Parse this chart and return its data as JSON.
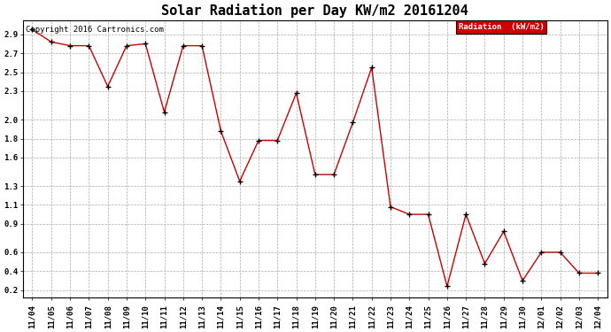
{
  "title": "Solar Radiation per Day KW/m2 20161204",
  "copyright_text": "Copyright 2016 Cartronics.com",
  "legend_label": "Radiation  (kW/m2)",
  "x_labels": [
    "11/04",
    "11/05",
    "11/06",
    "11/07",
    "11/08",
    "11/09",
    "11/10",
    "11/11",
    "11/12",
    "11/13",
    "11/14",
    "11/15",
    "11/16",
    "11/17",
    "11/18",
    "11/19",
    "11/20",
    "11/21",
    "11/22",
    "11/23",
    "11/24",
    "11/25",
    "11/26",
    "11/27",
    "11/28",
    "11/29",
    "11/30",
    "12/01",
    "12/02",
    "12/03",
    "12/04"
  ],
  "y_values": [
    2.95,
    2.82,
    2.78,
    2.78,
    2.35,
    2.78,
    2.8,
    2.08,
    2.78,
    2.78,
    1.88,
    1.35,
    1.78,
    1.78,
    2.28,
    1.42,
    1.42,
    1.97,
    2.55,
    1.08,
    1.0,
    1.0,
    0.24,
    1.0,
    0.48,
    0.82,
    0.3,
    0.6,
    0.6,
    0.38,
    0.38
  ],
  "line_color": "#cc0000",
  "marker_color": "#000000",
  "grid_color": "#aaaaaa",
  "background_color": "#ffffff",
  "legend_bg": "#cc0000",
  "legend_text_color": "#ffffff",
  "ylim": [
    0.12,
    3.05
  ],
  "yticks": [
    0.2,
    0.4,
    0.6,
    0.9,
    1.1,
    1.3,
    1.6,
    1.8,
    2.0,
    2.3,
    2.5,
    2.7,
    2.9
  ],
  "title_fontsize": 11,
  "tick_fontsize": 6.5,
  "copyright_fontsize": 6.5
}
